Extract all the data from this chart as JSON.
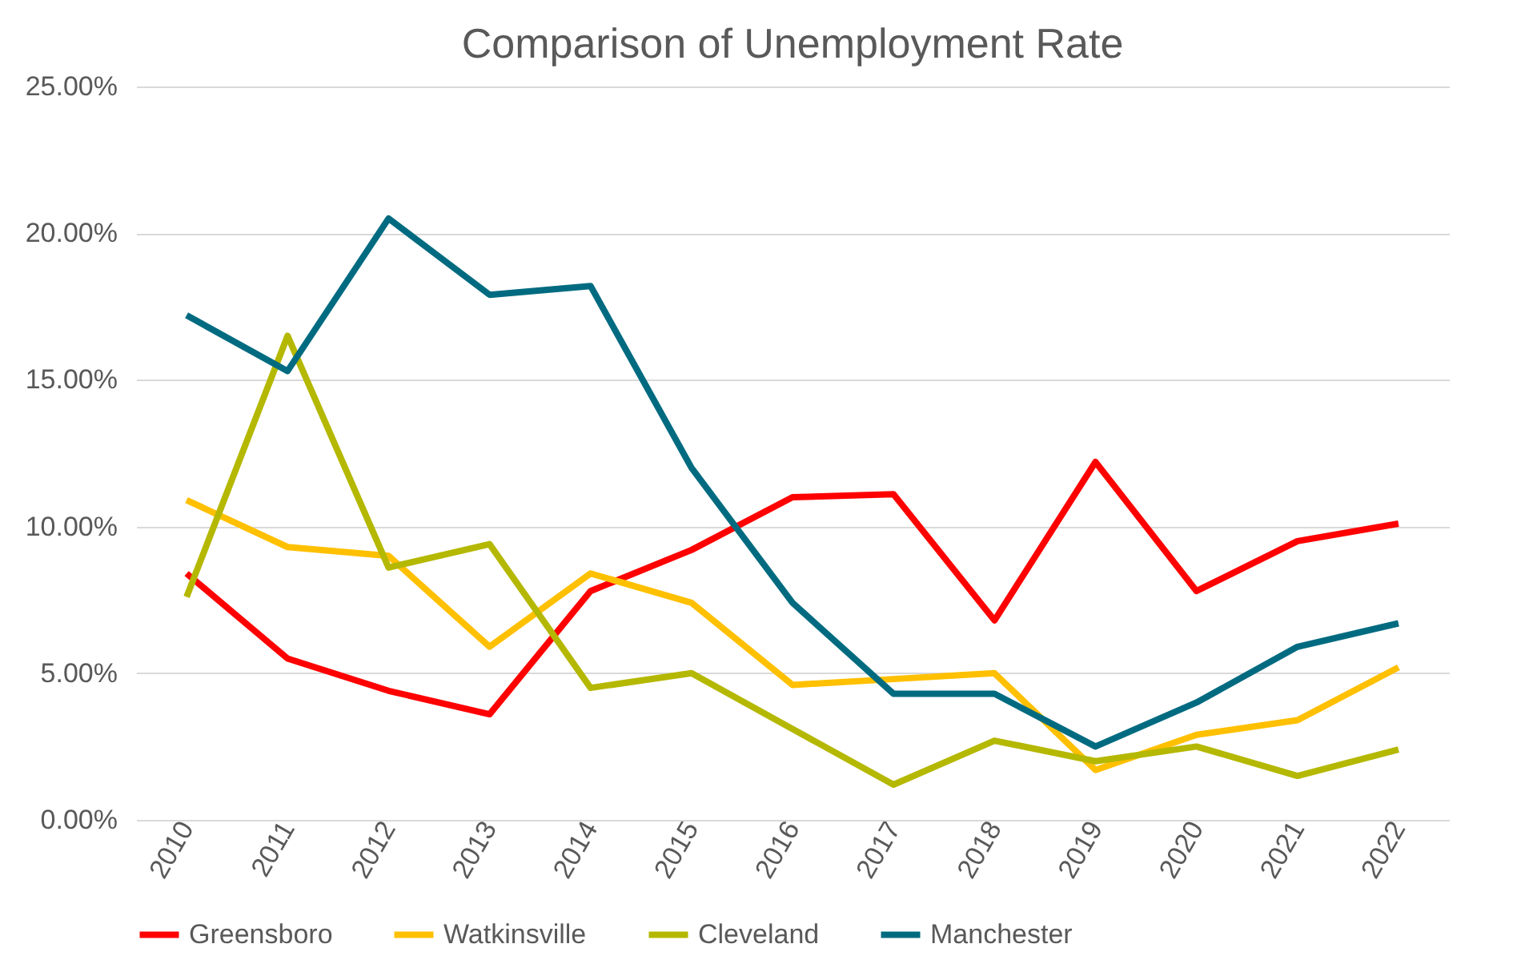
{
  "chart_data": {
    "type": "line",
    "title": "Comparison of Unemployment Rate",
    "categories": [
      "2010",
      "2011",
      "2012",
      "2013",
      "2014",
      "2015",
      "2016",
      "2017",
      "2018",
      "2019",
      "2020",
      "2021",
      "2022"
    ],
    "series": [
      {
        "name": "Greensboro",
        "color": "#ff0000",
        "values": [
          8.4,
          5.5,
          4.4,
          3.6,
          7.8,
          9.2,
          11.0,
          11.1,
          6.8,
          12.2,
          7.8,
          9.5,
          10.1
        ]
      },
      {
        "name": "Watkinsville",
        "color": "#ffc000",
        "values": [
          10.9,
          9.3,
          9.0,
          5.9,
          8.4,
          7.4,
          4.6,
          4.8,
          5.0,
          1.7,
          2.9,
          3.4,
          5.2
        ]
      },
      {
        "name": "Cleveland",
        "color": "#b5b800",
        "values": [
          7.6,
          16.5,
          8.6,
          9.4,
          4.5,
          5.0,
          3.1,
          1.2,
          2.7,
          2.0,
          2.5,
          1.5,
          2.4
        ]
      },
      {
        "name": "Manchester",
        "color": "#006b80",
        "values": [
          17.2,
          15.3,
          20.5,
          17.9,
          18.2,
          12.0,
          7.4,
          4.3,
          4.3,
          2.5,
          4.0,
          5.9,
          6.7
        ]
      }
    ],
    "ylim": [
      0,
      25
    ],
    "yticks": [
      {
        "value": 0,
        "label": "0.00%"
      },
      {
        "value": 5,
        "label": "5.00%"
      },
      {
        "value": 10,
        "label": "10.00%"
      },
      {
        "value": 15,
        "label": "15.00%"
      },
      {
        "value": 20,
        "label": "20.00%"
      },
      {
        "value": 25,
        "label": "25.00%"
      }
    ],
    "grid": "y",
    "legend": "bottom",
    "marker": "none",
    "line_style": "solid"
  }
}
